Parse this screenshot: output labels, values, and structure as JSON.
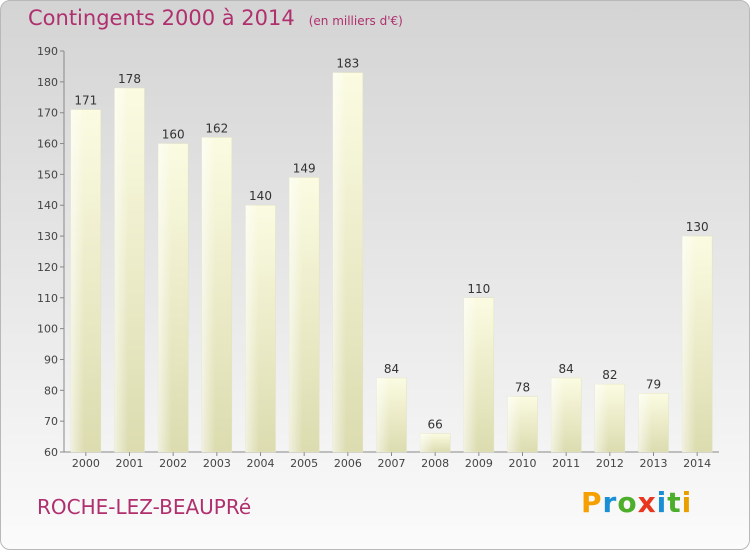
{
  "header": {
    "title": "Contingents 2000 à 2014",
    "subtitle": "(en milliers d'€)"
  },
  "footer": {
    "commune": "ROCHE-LEZ-BEAUPRé",
    "logo": {
      "letters": [
        "P",
        "r",
        "o",
        "x",
        "i",
        "t",
        "i"
      ],
      "colors": [
        "#f5a000",
        "#1a8fd6",
        "#4cae2a",
        "#e8371e",
        "#1a8fd6",
        "#4cae2a",
        "#e8a000"
      ]
    }
  },
  "chart_data": {
    "type": "bar",
    "title": "Contingents 2000 à 2014",
    "subtitle": "(en milliers d'€)",
    "categories": [
      "2000",
      "2001",
      "2002",
      "2003",
      "2004",
      "2005",
      "2006",
      "2007",
      "2008",
      "2009",
      "2010",
      "2011",
      "2012",
      "2013",
      "2014"
    ],
    "values": [
      171,
      178,
      160,
      162,
      140,
      149,
      183,
      84,
      66,
      110,
      78,
      84,
      82,
      79,
      130
    ],
    "ylim": [
      60,
      190
    ],
    "yticks": [
      60,
      70,
      80,
      90,
      100,
      110,
      120,
      130,
      140,
      150,
      160,
      170,
      180,
      190
    ],
    "grid": false,
    "bar_color": "#f6f6cf"
  }
}
